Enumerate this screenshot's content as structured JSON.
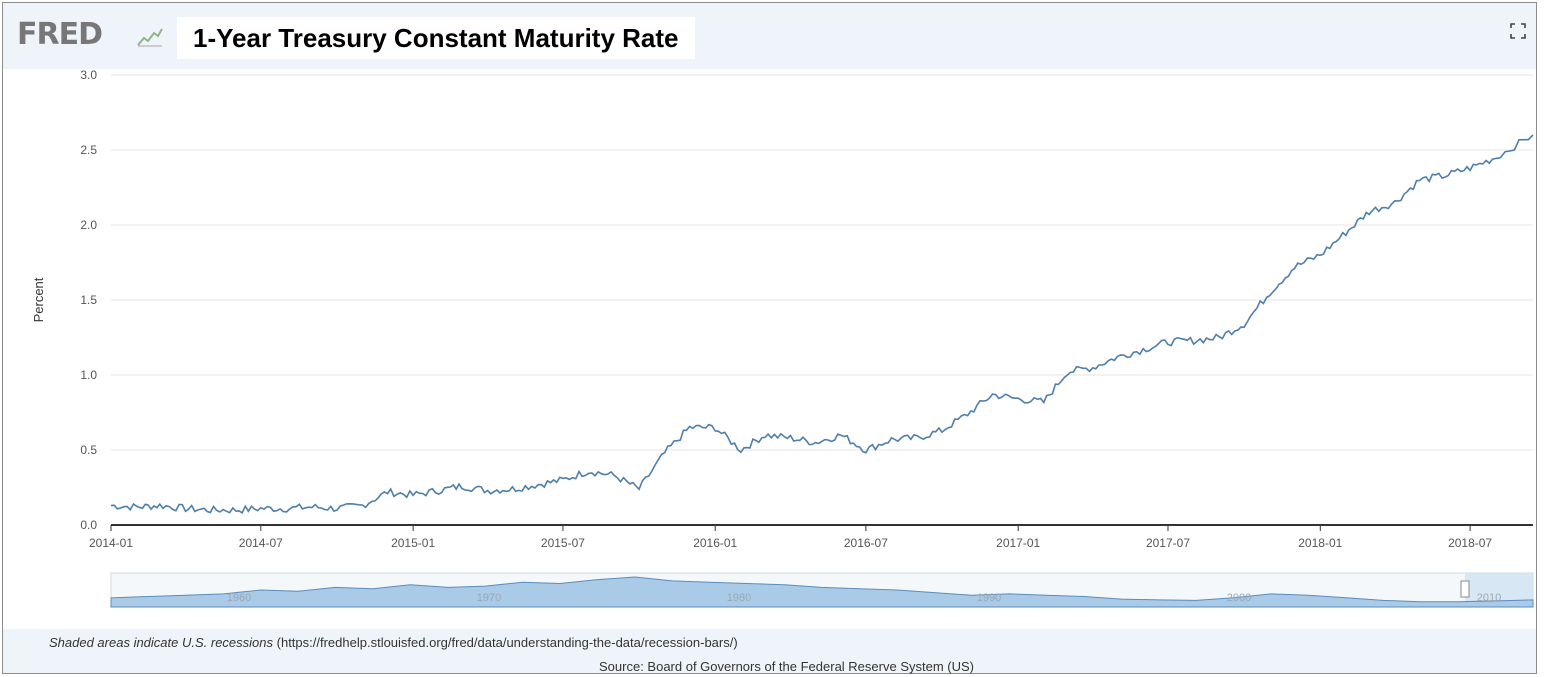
{
  "header": {
    "logo_text": "FRED",
    "title": "1-Year Treasury Constant Maturity Rate",
    "fullscreen_icon": "expand-icon"
  },
  "footer": {
    "recession_note": "Shaded areas indicate U.S. recessions",
    "recession_link": "(https://fredhelp.stlouisfed.org/fred/data/understanding-the-data/recession-bars/)",
    "source": "Source: Board of Governors of the Federal Reserve System (US)"
  },
  "colors": {
    "line": "#4f7eab",
    "navigator_fill": "#a9cbe8",
    "navigator_stroke": "#5b8cbc",
    "grid": "#e6e6e6",
    "axis": "#333333"
  },
  "chart_data": {
    "type": "line",
    "ylabel": "Percent",
    "ylim": [
      0,
      3.0
    ],
    "yticks": [
      "0.0",
      "0.5",
      "1.0",
      "1.5",
      "2.0",
      "2.5",
      "3.0"
    ],
    "xticks": [
      "2014-01",
      "2014-07",
      "2015-01",
      "2015-07",
      "2016-01",
      "2016-07",
      "2017-01",
      "2017-07",
      "2018-01",
      "2018-07"
    ],
    "xlim": [
      "2014-01-01",
      "2018-09-15"
    ],
    "grid": true,
    "series": [
      {
        "name": "",
        "x": [
          "2014-01-01",
          "2014-02-01",
          "2014-03-01",
          "2014-04-01",
          "2014-05-01",
          "2014-06-01",
          "2014-07-01",
          "2014-08-01",
          "2014-09-01",
          "2014-10-01",
          "2014-11-01",
          "2014-12-01",
          "2015-01-01",
          "2015-02-01",
          "2015-03-01",
          "2015-04-01",
          "2015-05-01",
          "2015-06-01",
          "2015-07-01",
          "2015-08-01",
          "2015-09-01",
          "2015-10-01",
          "2015-11-01",
          "2015-12-01",
          "2016-01-01",
          "2016-02-01",
          "2016-03-01",
          "2016-04-01",
          "2016-05-01",
          "2016-06-01",
          "2016-07-01",
          "2016-08-01",
          "2016-09-01",
          "2016-10-01",
          "2016-11-01",
          "2016-12-01",
          "2017-01-01",
          "2017-02-01",
          "2017-03-01",
          "2017-04-01",
          "2017-05-01",
          "2017-06-01",
          "2017-07-01",
          "2017-08-01",
          "2017-09-01",
          "2017-10-01",
          "2017-11-01",
          "2017-12-01",
          "2018-01-01",
          "2018-02-01",
          "2018-03-01",
          "2018-04-01",
          "2018-05-01",
          "2018-06-01",
          "2018-07-01",
          "2018-08-01",
          "2018-09-15"
        ],
        "values": [
          0.13,
          0.12,
          0.13,
          0.11,
          0.1,
          0.1,
          0.11,
          0.11,
          0.12,
          0.11,
          0.13,
          0.22,
          0.2,
          0.23,
          0.26,
          0.23,
          0.24,
          0.27,
          0.3,
          0.36,
          0.33,
          0.24,
          0.48,
          0.65,
          0.65,
          0.5,
          0.6,
          0.58,
          0.55,
          0.6,
          0.5,
          0.57,
          0.58,
          0.63,
          0.74,
          0.87,
          0.84,
          0.82,
          1.02,
          1.05,
          1.12,
          1.17,
          1.22,
          1.23,
          1.25,
          1.34,
          1.55,
          1.72,
          1.8,
          1.95,
          2.09,
          2.15,
          2.3,
          2.33,
          2.38,
          2.45,
          2.6
        ]
      }
    ],
    "navigator": {
      "labels": [
        "1960",
        "1970",
        "1980",
        "1990",
        "2000",
        "2010"
      ]
    }
  }
}
